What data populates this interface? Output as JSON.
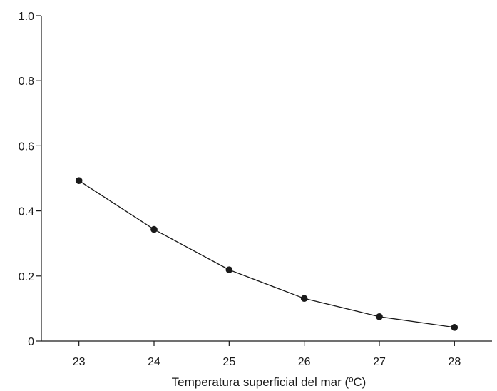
{
  "chart_data": {
    "type": "line",
    "title": "",
    "xlabel": "Temperatura superficial del mar (ºC)",
    "ylabel": "",
    "x": [
      23,
      24,
      25,
      26,
      27,
      28
    ],
    "series": [
      {
        "values": [
          0.493,
          0.343,
          0.219,
          0.131,
          0.075,
          0.042
        ]
      }
    ],
    "xlim": [
      22.5,
      28.5
    ],
    "ylim": [
      0,
      1.0
    ],
    "xticks": [
      "23",
      "24",
      "25",
      "26",
      "27",
      "28"
    ],
    "yticks": [
      "0",
      "0.2",
      "0.4",
      "0.6",
      "0.8",
      "1.0"
    ],
    "grid": false,
    "legend": "none",
    "colors": {
      "line": "#1a1a1a",
      "marker": "#1a1a1a",
      "axis": "#1a1a1a"
    }
  }
}
